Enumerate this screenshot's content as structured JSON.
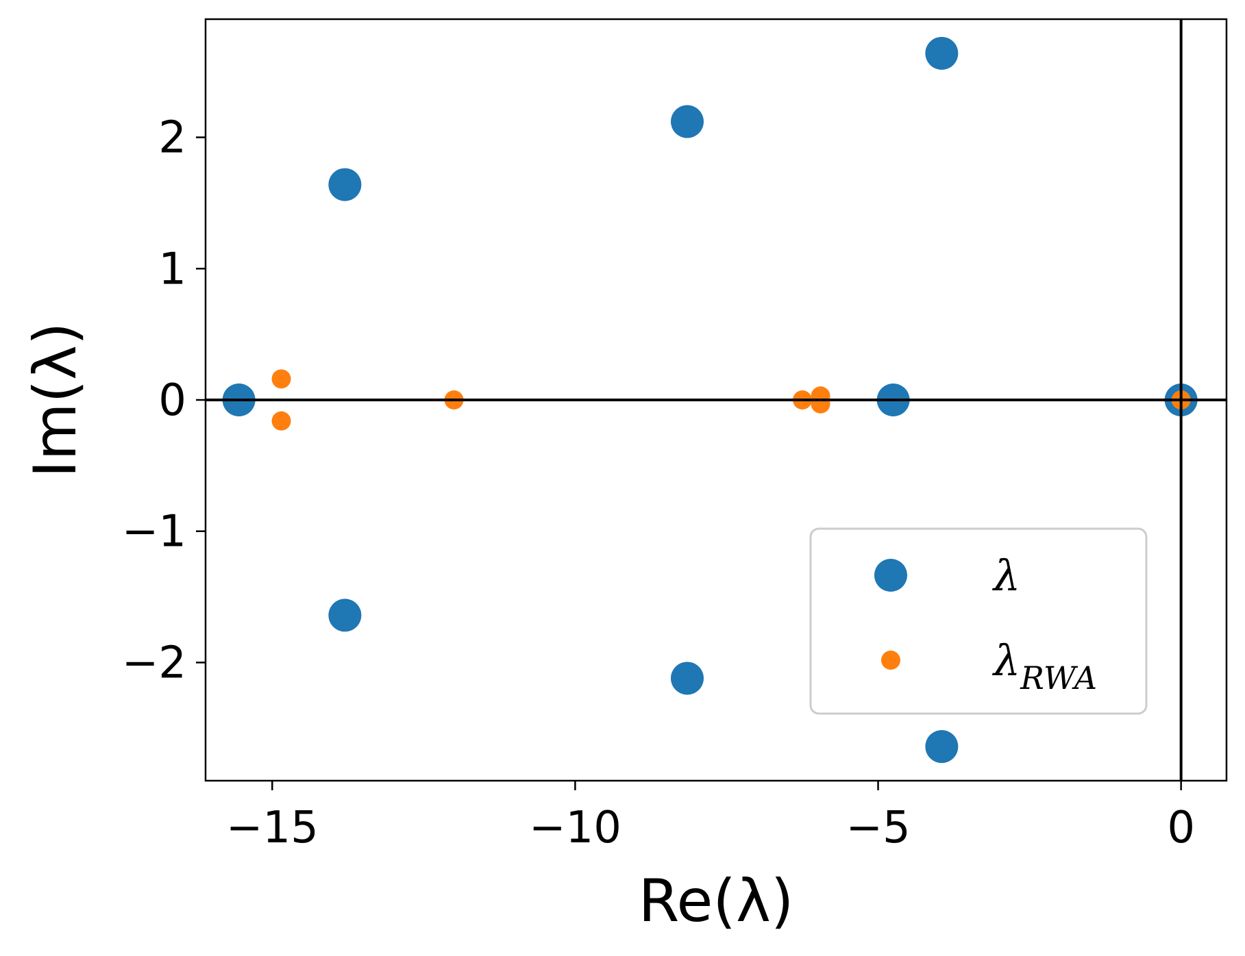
{
  "chart_data": {
    "type": "scatter",
    "xlabel": "Re(λ)",
    "ylabel": "Im(λ)",
    "xlim": [
      -16.1,
      0.75
    ],
    "ylim": [
      -2.9,
      2.9
    ],
    "xticks": [
      -15,
      -10,
      -5,
      0
    ],
    "yticks": [
      -2,
      -1,
      0,
      1,
      2
    ],
    "grid": false,
    "reference_lines": {
      "horizontal": 0,
      "vertical": 0
    },
    "legend_position": "lower-right",
    "series": [
      {
        "name": "λ",
        "legend_main": "λ",
        "legend_sub": "",
        "color": "#1f77b4",
        "marker_size": "large",
        "points": [
          [
            -15.55,
            0.0
          ],
          [
            -13.8,
            1.64
          ],
          [
            -13.8,
            -1.64
          ],
          [
            -8.15,
            2.12
          ],
          [
            -8.15,
            -2.12
          ],
          [
            -4.75,
            0.0
          ],
          [
            -3.95,
            2.64
          ],
          [
            -3.95,
            -2.64
          ],
          [
            0.0,
            0.0
          ]
        ]
      },
      {
        "name": "λRWA",
        "legend_main": "λ",
        "legend_sub": "RWA",
        "color": "#ff7f0e",
        "marker_size": "small",
        "points": [
          [
            -14.85,
            0.16
          ],
          [
            -14.85,
            -0.16
          ],
          [
            -12.0,
            0.0
          ],
          [
            -6.25,
            0.0
          ],
          [
            -5.95,
            0.03
          ],
          [
            -5.95,
            -0.03
          ],
          [
            0.0,
            0.0
          ]
        ]
      }
    ]
  }
}
